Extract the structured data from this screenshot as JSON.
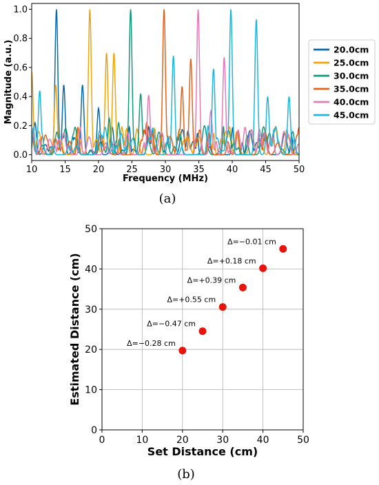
{
  "chart_data": [
    {
      "type": "line",
      "panel_label": "(a)",
      "xlabel": "Frequency (MHz)",
      "ylabel": "Magnitude (a.u.)",
      "xlim": [
        10,
        50
      ],
      "ylim": [
        -0.04,
        1.04
      ],
      "xticks": [
        10,
        15,
        20,
        25,
        30,
        35,
        40,
        45,
        50
      ],
      "yticks": [
        0.0,
        0.2,
        0.4,
        0.6,
        0.8,
        1.0
      ],
      "grid": false,
      "legend_position": "right",
      "series": [
        {
          "name": "20.0cm",
          "color": "#0868ac",
          "peaks": [
            [
              10.5,
              0.22
            ],
            [
              13.7,
              1.0
            ],
            [
              14.8,
              0.48
            ],
            [
              17.6,
              0.48
            ],
            [
              20.0,
              0.32
            ]
          ]
        },
        {
          "name": "25.0cm",
          "color": "#f0a30a",
          "peaks": [
            [
              10.0,
              0.57
            ],
            [
              13.6,
              0.48
            ],
            [
              18.7,
              1.0
            ],
            [
              21.2,
              0.7
            ],
            [
              22.3,
              0.7
            ],
            [
              24.2,
              0.18
            ]
          ]
        },
        {
          "name": "30.0cm",
          "color": "#119a7a",
          "peaks": [
            [
              24.8,
              1.0
            ],
            [
              26.3,
              0.42
            ],
            [
              21.6,
              0.25
            ],
            [
              23.0,
              0.22
            ]
          ]
        },
        {
          "name": "35.0cm",
          "color": "#e5611a",
          "peaks": [
            [
              29.8,
              1.0
            ],
            [
              32.5,
              0.47
            ],
            [
              33.8,
              0.66
            ],
            [
              27.2,
              0.22
            ]
          ]
        },
        {
          "name": "40.0cm",
          "color": "#e27cb5",
          "peaks": [
            [
              34.9,
              1.0
            ],
            [
              27.5,
              0.41
            ],
            [
              38.8,
              0.67
            ],
            [
              36.8,
              0.3
            ]
          ]
        },
        {
          "name": "45.0cm",
          "color": "#1fb4d9",
          "peaks": [
            [
              39.8,
              1.0
            ],
            [
              43.6,
              0.93
            ],
            [
              31.2,
              0.68
            ],
            [
              37.2,
              0.59
            ],
            [
              11.2,
              0.44
            ],
            [
              45.3,
              0.4
            ],
            [
              48.5,
              0.4
            ]
          ]
        }
      ]
    },
    {
      "type": "scatter",
      "panel_label": "(b)",
      "xlabel": "Set Distance (cm)",
      "ylabel": "Estimated Distance (cm)",
      "xlim": [
        0,
        50
      ],
      "ylim": [
        0,
        50
      ],
      "xticks": [
        0,
        10,
        20,
        30,
        40,
        50
      ],
      "yticks": [
        0,
        10,
        20,
        30,
        40,
        50
      ],
      "grid": true,
      "point_color": "#e8140c",
      "points": [
        {
          "x": 20,
          "y": 19.72,
          "label": "Δ=−0.28 cm"
        },
        {
          "x": 25,
          "y": 24.53,
          "label": "Δ=−0.47 cm"
        },
        {
          "x": 30,
          "y": 30.55,
          "label": "Δ=+0.55 cm"
        },
        {
          "x": 35,
          "y": 35.39,
          "label": "Δ=+0.39 cm"
        },
        {
          "x": 40,
          "y": 40.18,
          "label": "Δ=+0.18 cm"
        },
        {
          "x": 45,
          "y": 44.99,
          "label": "Δ=−0.01 cm"
        }
      ]
    }
  ]
}
